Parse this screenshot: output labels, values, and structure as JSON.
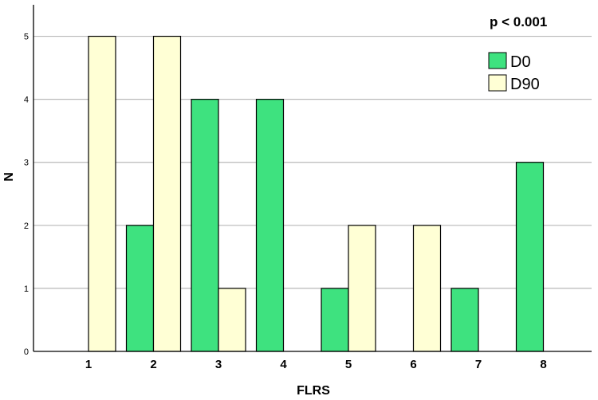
{
  "chart_data": {
    "type": "bar",
    "xlabel": "FLRS",
    "ylabel": "N",
    "annotation": "p < 0.001",
    "categories": [
      "1",
      "2",
      "3",
      "4",
      "5",
      "6",
      "7",
      "8"
    ],
    "series": [
      {
        "name": "D0",
        "color": "#3EE27F",
        "values": [
          0,
          2,
          4,
          4,
          1,
          0,
          1,
          3
        ]
      },
      {
        "name": "D90",
        "color": "#FFFFD5",
        "values": [
          5,
          5,
          1,
          0,
          2,
          2,
          0,
          0
        ]
      }
    ],
    "yticks": [
      "0",
      "1",
      "2",
      "3",
      "4",
      "5"
    ],
    "ylim": [
      0,
      5.5
    ],
    "grid": true,
    "legend_position": "top-right"
  }
}
